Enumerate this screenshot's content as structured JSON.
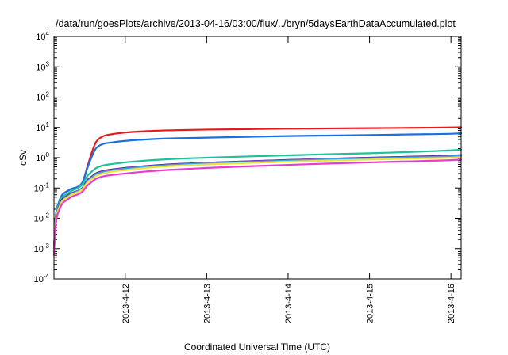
{
  "chart_data": {
    "type": "line",
    "title": "/data/run/goesPlots/archive/2013-04-16/03:00/flux/../bryn/5daysEarthDataAccumulated.plot",
    "xlabel": "Coordinated Universal Time (UTC)",
    "ylabel": "cSv",
    "yscale": "log",
    "ylim": [
      0.0001,
      10000
    ],
    "xlim": [
      "2013-04-11 03:00",
      "2013-04-16 03:00"
    ],
    "y_ticks": [
      {
        "base": "10",
        "exp": "-4",
        "value": 0.0001
      },
      {
        "base": "10",
        "exp": "-3",
        "value": 0.001
      },
      {
        "base": "10",
        "exp": "-2",
        "value": 0.01
      },
      {
        "base": "10",
        "exp": "-1",
        "value": 0.1
      },
      {
        "base": "10",
        "exp": "0",
        "value": 1
      },
      {
        "base": "10",
        "exp": "1",
        "value": 10
      },
      {
        "base": "10",
        "exp": "2",
        "value": 100
      },
      {
        "base": "10",
        "exp": "3",
        "value": 1000
      },
      {
        "base": "10",
        "exp": "4",
        "value": 10000
      }
    ],
    "x_ticks": [
      {
        "label": "2013-4-12",
        "value": "2013-04-12 00:00"
      },
      {
        "label": "2013-4-13",
        "value": "2013-04-13 00:00"
      },
      {
        "label": "2013-4-14",
        "value": "2013-04-14 00:00"
      },
      {
        "label": "2013-4-15",
        "value": "2013-04-15 00:00"
      },
      {
        "label": "2013-4-16",
        "value": "2013-04-16 00:00"
      }
    ],
    "grid": false,
    "x": [
      "2013-04-11 03:00",
      "2013-04-11 03:24",
      "2013-04-11 04:30",
      "2013-04-11 07:25",
      "2013-04-11 11:20",
      "2013-04-11 12:50",
      "2013-04-11 14:10",
      "2013-04-11 15:20",
      "2013-04-11 17:20",
      "2013-04-11 20:10",
      "2013-04-12 00:00",
      "2013-04-12 06:00",
      "2013-04-12 12:00",
      "2013-04-13 00:00",
      "2013-04-13 12:00",
      "2013-04-14 00:00",
      "2013-04-14 12:00",
      "2013-04-15 00:00",
      "2013-04-15 12:00",
      "2013-04-16 00:00",
      "2013-04-16 03:00"
    ],
    "series": [
      {
        "color": "#e8191b",
        "values": [
          0.001,
          0.008,
          0.035,
          0.085,
          0.15,
          0.5,
          1.5,
          3.2,
          5.0,
          6.0,
          6.8,
          7.5,
          8.0,
          8.5,
          8.8,
          9.1,
          9.3,
          9.5,
          9.7,
          10.0,
          10.2
        ]
      },
      {
        "color": "#1b6fe4",
        "values": [
          0.001,
          0.008,
          0.035,
          0.085,
          0.15,
          0.45,
          1.1,
          2.0,
          2.8,
          3.2,
          3.6,
          4.0,
          4.3,
          4.6,
          4.9,
          5.2,
          5.4,
          5.6,
          5.9,
          6.2,
          6.4
        ]
      },
      {
        "color": "#1fc199",
        "values": [
          0.0008,
          0.007,
          0.03,
          0.07,
          0.13,
          0.25,
          0.35,
          0.45,
          0.55,
          0.62,
          0.7,
          0.8,
          0.88,
          1.0,
          1.1,
          1.2,
          1.3,
          1.4,
          1.55,
          1.75,
          1.85
        ]
      },
      {
        "color": "#2b1f6e",
        "values": [
          0.0008,
          0.006,
          0.025,
          0.06,
          0.1,
          0.18,
          0.24,
          0.3,
          0.36,
          0.41,
          0.46,
          0.53,
          0.59,
          0.68,
          0.76,
          0.84,
          0.92,
          1.0,
          1.08,
          1.17,
          1.22
        ]
      },
      {
        "color": "#7e35c8",
        "values": [
          0.0008,
          0.006,
          0.024,
          0.058,
          0.098,
          0.17,
          0.23,
          0.29,
          0.35,
          0.4,
          0.45,
          0.52,
          0.58,
          0.67,
          0.75,
          0.83,
          0.91,
          0.98,
          1.06,
          1.14,
          1.18
        ]
      },
      {
        "color": "#3aa0e8",
        "values": [
          0.0008,
          0.006,
          0.023,
          0.056,
          0.095,
          0.16,
          0.22,
          0.28,
          0.33,
          0.38,
          0.43,
          0.5,
          0.56,
          0.65,
          0.72,
          0.8,
          0.88,
          0.95,
          1.02,
          1.1,
          1.14
        ]
      },
      {
        "color": "#f0e03a",
        "values": [
          0.0007,
          0.0055,
          0.022,
          0.053,
          0.09,
          0.15,
          0.2,
          0.25,
          0.3,
          0.35,
          0.39,
          0.46,
          0.52,
          0.6,
          0.67,
          0.74,
          0.81,
          0.87,
          0.94,
          1.0,
          1.04
        ]
      },
      {
        "color": "#e83ccf",
        "values": [
          0.0006,
          0.0045,
          0.018,
          0.045,
          0.075,
          0.12,
          0.16,
          0.2,
          0.24,
          0.27,
          0.3,
          0.35,
          0.39,
          0.46,
          0.52,
          0.58,
          0.64,
          0.7,
          0.76,
          0.83,
          0.87
        ]
      }
    ]
  }
}
